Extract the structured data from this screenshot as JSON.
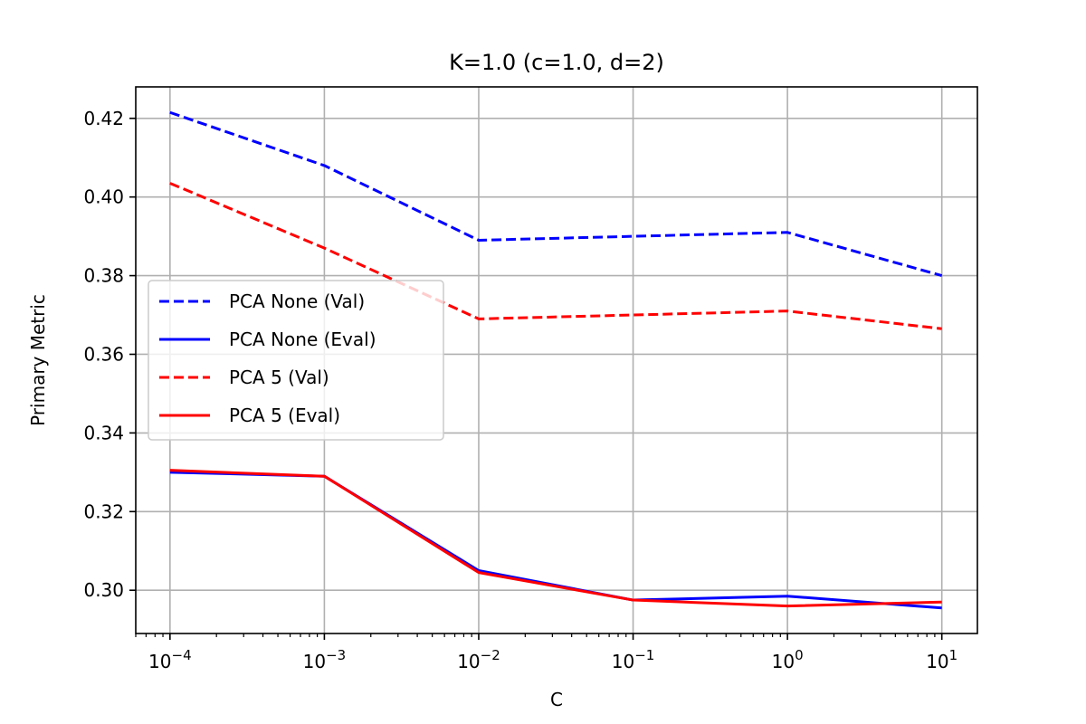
{
  "chart_data": {
    "type": "line",
    "title": "K=1.0 (c=1.0, d=2)",
    "xlabel": "C",
    "ylabel": "Primary Metric",
    "x_scale": "log",
    "x": [
      0.0001,
      0.001,
      0.01,
      0.1,
      1,
      10
    ],
    "xlim": [
      6e-05,
      17
    ],
    "ylim": [
      0.289,
      0.428
    ],
    "x_ticks": [
      {
        "value": 0.0001,
        "base": "10",
        "exp": "−4"
      },
      {
        "value": 0.001,
        "base": "10",
        "exp": "−3"
      },
      {
        "value": 0.01,
        "base": "10",
        "exp": "−2"
      },
      {
        "value": 0.1,
        "base": "10",
        "exp": "−1"
      },
      {
        "value": 1,
        "base": "10",
        "exp": "0"
      },
      {
        "value": 10,
        "base": "10",
        "exp": "1"
      }
    ],
    "y_ticks": [
      {
        "value": 0.3,
        "label": "0.30"
      },
      {
        "value": 0.32,
        "label": "0.32"
      },
      {
        "value": 0.34,
        "label": "0.34"
      },
      {
        "value": 0.36,
        "label": "0.36"
      },
      {
        "value": 0.38,
        "label": "0.38"
      },
      {
        "value": 0.4,
        "label": "0.40"
      },
      {
        "value": 0.42,
        "label": "0.42"
      }
    ],
    "grid": true,
    "legend_position": "center-left",
    "series": [
      {
        "name": "PCA None (Val)",
        "color": "#0000ff",
        "style": "dashed",
        "values": [
          0.4215,
          0.408,
          0.389,
          0.39,
          0.391,
          0.38
        ]
      },
      {
        "name": "PCA None (Eval)",
        "color": "#0000ff",
        "style": "solid",
        "values": [
          0.33,
          0.329,
          0.305,
          0.2975,
          0.2985,
          0.2955
        ]
      },
      {
        "name": "PCA 5 (Val)",
        "color": "#ff0000",
        "style": "dashed",
        "values": [
          0.4035,
          0.387,
          0.369,
          0.37,
          0.371,
          0.3665
        ]
      },
      {
        "name": "PCA 5 (Eval)",
        "color": "#ff0000",
        "style": "solid",
        "values": [
          0.3305,
          0.329,
          0.3045,
          0.2975,
          0.296,
          0.297
        ]
      }
    ]
  }
}
